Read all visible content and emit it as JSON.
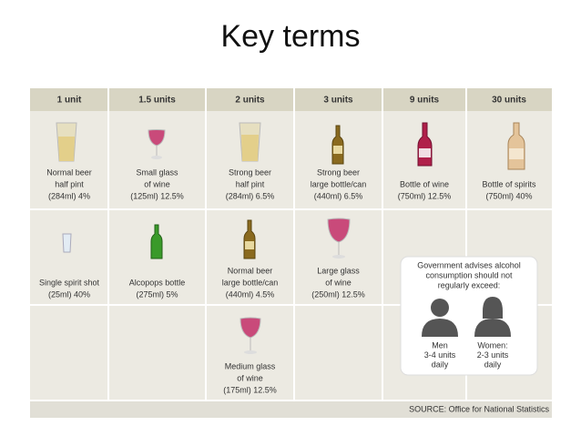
{
  "header": {
    "title": "Key terms"
  },
  "table": {
    "headers": [
      "1 unit",
      "1.5 units",
      "2 units",
      "3 units",
      "9 units",
      "30 units"
    ],
    "rows": [
      [
        [
          "Normal beer",
          "half pint",
          "(284ml) 4%"
        ],
        [
          "Small glass",
          "of wine",
          "(125ml) 12.5%"
        ],
        [
          "Strong beer",
          "half pint",
          "(284ml) 6.5%"
        ],
        [
          "Strong beer",
          "large bottle/can",
          "(440ml) 6.5%"
        ],
        [
          "Bottle of wine",
          "(750ml) 12.5%"
        ],
        [
          "Bottle of spirits",
          "(750ml) 40%"
        ]
      ],
      [
        [
          "Single spirit shot",
          "(25ml) 40%"
        ],
        [
          "Alcopops bottle",
          "(275ml) 5%"
        ],
        [
          "Normal beer",
          "large bottle/can",
          "(440ml) 4.5%"
        ],
        [
          "Large glass",
          "of wine",
          "(250ml) 12.5%"
        ],
        null,
        null
      ],
      [
        null,
        null,
        [
          "Medium glass",
          "of wine",
          "(175ml) 12.5%"
        ],
        null,
        null,
        null
      ]
    ]
  },
  "callout": {
    "heading": [
      "Government advises alcohol",
      "consumption should not",
      "regularly exceed:"
    ],
    "men": [
      "Men",
      "3-4 units",
      "daily"
    ],
    "women": [
      "Women:",
      "2-3 units",
      "daily"
    ]
  },
  "source": "SOURCE: Office for National Statistics"
}
